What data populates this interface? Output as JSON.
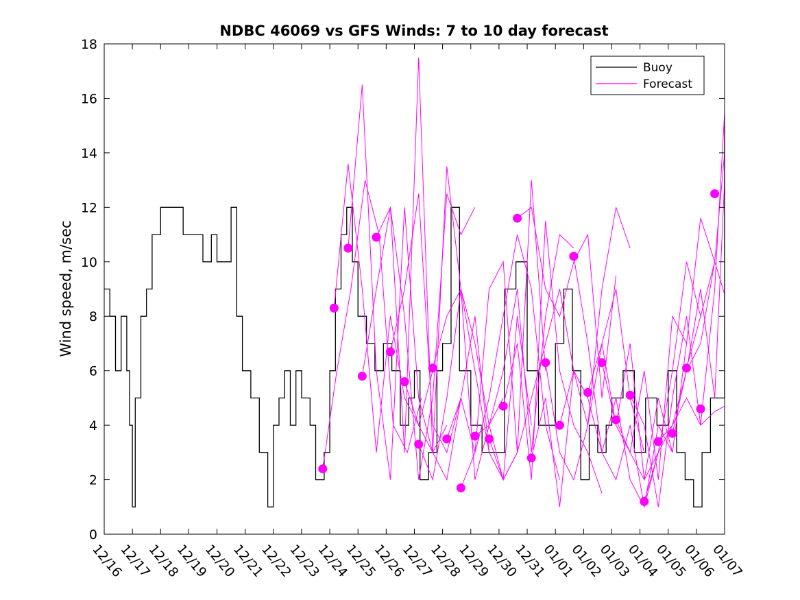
{
  "chart_data": {
    "type": "line",
    "title": "NDBC 46069 vs GFS Winds: 7 to 10 day forecast",
    "xlabel": "",
    "ylabel": "Wind speed, m/sec",
    "ylim": [
      0,
      18
    ],
    "xlim": [
      0,
      22
    ],
    "yticks": [
      0,
      2,
      4,
      6,
      8,
      10,
      12,
      14,
      16,
      18
    ],
    "x_ticks": [
      0,
      1,
      2,
      3,
      4,
      5,
      6,
      7,
      8,
      9,
      10,
      11,
      12,
      13,
      14,
      15,
      16,
      17,
      18,
      19,
      20,
      21,
      22
    ],
    "x_tick_labels": [
      "12/16",
      "12/17",
      "12/18",
      "12/19",
      "12/20",
      "12/21",
      "12/22",
      "12/23",
      "12/24",
      "12/25",
      "12/26",
      "12/27",
      "12/28",
      "12/29",
      "12/30",
      "12/31",
      "01/01",
      "01/02",
      "01/03",
      "01/04",
      "01/05",
      "01/06",
      "01/07"
    ],
    "x_units": "days since 12/16",
    "legend": {
      "position": "top-right",
      "entries": [
        "Buoy",
        "Forecast"
      ]
    },
    "colors": {
      "buoy": "#000000",
      "forecast": "#ff00ff"
    },
    "series": [
      {
        "name": "Buoy",
        "x": [
          0,
          0.2,
          0.4,
          0.6,
          0.8,
          0.9,
          1.0,
          1.1,
          1.3,
          1.5,
          1.7,
          2.0,
          2.3,
          2.6,
          2.8,
          3.0,
          3.2,
          3.5,
          3.8,
          4.0,
          4.2,
          4.5,
          4.7,
          4.9,
          5.2,
          5.5,
          5.8,
          6.0,
          6.2,
          6.4,
          6.6,
          6.8,
          7.0,
          7.3,
          7.5,
          7.8,
          8.0,
          8.2,
          8.4,
          8.6,
          8.8,
          9.0,
          9.3,
          9.6,
          9.9,
          10.2,
          10.5,
          10.8,
          11.0,
          11.2,
          11.5,
          11.8,
          12.0,
          12.3,
          12.6,
          13.0,
          13.4,
          13.8,
          14.2,
          14.6,
          15.0,
          15.4,
          15.8,
          16.0,
          16.3,
          16.6,
          16.9,
          17.2,
          17.5,
          17.8,
          18.0,
          18.4,
          18.8,
          19.2,
          19.6,
          20.0,
          20.3,
          20.6,
          20.9,
          21.2,
          21.5,
          22.0
        ],
        "values": [
          9,
          8,
          6,
          8,
          6,
          4,
          1,
          5,
          8,
          9,
          11,
          12,
          12,
          12,
          11,
          11,
          11,
          10,
          11,
          10,
          10,
          12,
          8,
          6,
          5,
          3,
          1,
          4,
          5,
          6,
          4,
          6,
          5,
          4,
          2,
          3,
          6,
          9,
          11,
          12,
          10,
          8,
          7,
          6,
          7,
          6,
          4,
          5,
          6,
          2,
          3,
          6,
          7,
          12,
          6,
          4,
          3,
          3,
          9,
          10,
          6,
          4,
          4,
          7,
          9,
          6,
          2,
          4,
          3,
          4,
          5,
          6,
          3,
          5,
          4,
          6,
          3,
          2,
          1,
          3,
          5,
          15
        ]
      },
      {
        "name": "Forecast",
        "markers": {
          "x": [
            7.75,
            8.15,
            8.65,
            9.15,
            9.65,
            10.15,
            10.65,
            11.15,
            11.65,
            12.15,
            12.65,
            13.15,
            13.65,
            14.15,
            14.65,
            15.15,
            15.65,
            16.15,
            16.65,
            17.15,
            17.65,
            18.15,
            18.65,
            19.15,
            19.65,
            20.15,
            20.65,
            21.15,
            21.65
          ],
          "values": [
            2.4,
            8.3,
            10.5,
            5.8,
            10.9,
            6.7,
            5.6,
            3.3,
            6.1,
            3.5,
            1.7,
            3.6,
            3.5,
            4.7,
            11.6,
            2.8,
            6.3,
            4.0,
            10.2,
            5.2,
            6.3,
            4.2,
            5.1,
            1.2,
            3.4,
            3.7,
            6.1,
            4.6,
            12.5
          ]
        },
        "runs": [
          {
            "x": [
              7.75,
              8.25,
              8.75,
              9.25,
              9.75,
              10.25,
              10.75,
              11.25
            ],
            "values": [
              2.4,
              6,
              9,
              13,
              11,
              4,
              3,
              5
            ]
          },
          {
            "x": [
              8.15,
              8.65,
              9.15,
              9.65,
              10.15,
              10.65,
              11.15,
              11.65
            ],
            "values": [
              8.3,
              13.6,
              9,
              3,
              8,
              5,
              4,
              6
            ]
          },
          {
            "x": [
              8.65,
              9.15,
              9.65,
              10.15,
              10.65,
              11.15,
              11.65,
              12.15
            ],
            "values": [
              10.5,
              16.5,
              6,
              2,
              12,
              5,
              3,
              4
            ]
          },
          {
            "x": [
              9.15,
              9.65,
              10.15,
              10.65,
              11.15,
              11.65,
              12.15,
              12.65
            ],
            "values": [
              5.8,
              9,
              12,
              3,
              17.5,
              3,
              2,
              5
            ]
          },
          {
            "x": [
              9.65,
              10.15,
              10.65,
              11.15,
              11.65,
              12.15,
              12.65,
              13.15
            ],
            "values": [
              10.9,
              12,
              8,
              2,
              5,
              12.5,
              11,
              12
            ]
          },
          {
            "x": [
              10.15,
              10.65,
              11.15,
              11.65,
              12.15,
              12.65,
              13.15,
              13.65
            ],
            "values": [
              6.7,
              9,
              12.5,
              4,
              3,
              5,
              8,
              3
            ]
          },
          {
            "x": [
              10.65,
              11.15,
              11.65,
              12.15,
              12.65,
              13.15,
              13.65,
              14.15
            ],
            "values": [
              5.6,
              4,
              3,
              13.5,
              9,
              2,
              4,
              5
            ]
          },
          {
            "x": [
              11.15,
              11.65,
              12.15,
              12.65,
              13.15,
              13.65,
              14.15,
              14.65
            ],
            "values": [
              3.3,
              2,
              5,
              9,
              7,
              4,
              2,
              3
            ]
          },
          {
            "x": [
              11.65,
              12.15,
              12.65,
              13.15,
              13.65,
              14.15,
              14.65,
              15.15
            ],
            "values": [
              6.1,
              8,
              9,
              6,
              3,
              2,
              8,
              4
            ]
          },
          {
            "x": [
              12.15,
              12.65,
              13.15,
              13.65,
              14.15,
              14.65,
              15.15,
              15.65
            ],
            "values": [
              3.5,
              5,
              3,
              9,
              10,
              3,
              13,
              6
            ]
          },
          {
            "x": [
              12.65,
              13.15,
              13.65,
              14.15,
              14.65,
              15.15,
              15.65,
              16.15
            ],
            "values": [
              1.7,
              3,
              5,
              8,
              11,
              9,
              4,
              2
            ]
          },
          {
            "x": [
              13.15,
              13.65,
              14.15,
              14.65,
              15.15,
              15.65,
              16.15,
              16.65
            ],
            "values": [
              3.6,
              4,
              6,
              9,
              3,
              8,
              11,
              10.5
            ]
          },
          {
            "x": [
              13.65,
              14.15,
              14.65,
              15.15,
              15.65,
              16.15,
              16.65,
              17.15
            ],
            "values": [
              3.5,
              2,
              3,
              5,
              7,
              9,
              6,
              5
            ]
          },
          {
            "x": [
              14.15,
              14.65,
              15.15,
              15.65,
              16.15,
              16.65,
              17.15,
              17.65
            ],
            "values": [
              4.7,
              7,
              2,
              11.5,
              6,
              4,
              3,
              1.5
            ]
          },
          {
            "x": [
              14.65,
              15.15,
              15.65,
              16.15,
              16.65,
              17.15,
              17.65,
              18.15
            ],
            "values": [
              11.6,
              12,
              9,
              8,
              10,
              11,
              5,
              9.5
            ]
          },
          {
            "x": [
              15.15,
              15.65,
              16.15,
              16.65,
              17.15,
              17.65,
              18.15,
              18.65
            ],
            "values": [
              2.8,
              5,
              1,
              6,
              4,
              9,
              12,
              10.5
            ]
          },
          {
            "x": [
              15.65,
              16.15,
              16.65,
              17.15,
              17.65,
              18.15,
              18.65,
              19.15
            ],
            "values": [
              6.3,
              3,
              2,
              4,
              7,
              9,
              5,
              3
            ]
          },
          {
            "x": [
              16.15,
              16.65,
              17.15,
              17.65,
              18.15,
              18.65,
              19.15,
              19.65
            ],
            "values": [
              4.0,
              6,
              5,
              3,
              2,
              4,
              1,
              3
            ]
          },
          {
            "x": [
              16.65,
              17.15,
              17.65,
              18.15,
              18.65,
              19.15,
              19.65,
              20.15
            ],
            "values": [
              10.2,
              7,
              3,
              5,
              2,
              1,
              4,
              3
            ]
          },
          {
            "x": [
              17.15,
              17.65,
              18.15,
              18.65,
              19.15,
              19.65,
              20.15,
              20.65
            ],
            "values": [
              5.2,
              7,
              4,
              3,
              6,
              2,
              8,
              7
            ]
          },
          {
            "x": [
              17.65,
              18.15,
              18.65,
              19.15,
              19.65,
              20.15,
              20.65,
              21.15
            ],
            "values": [
              6.3,
              4,
              7,
              2,
              3,
              6,
              10,
              8
            ]
          },
          {
            "x": [
              18.15,
              18.65,
              19.15,
              19.65,
              20.15,
              20.65,
              21.15,
              21.65
            ],
            "values": [
              4.2,
              3,
              2,
              5,
              3,
              7,
              11.6,
              10
            ]
          },
          {
            "x": [
              18.65,
              19.15,
              19.65,
              20.15,
              20.65,
              21.15,
              21.65,
              22.0
            ],
            "values": [
              5.1,
              4,
              1,
              5,
              8,
              4,
              9,
              15.5
            ]
          },
          {
            "x": [
              19.15,
              19.65,
              20.15,
              20.65,
              21.15,
              21.65,
              22.0
            ],
            "values": [
              1.2,
              3,
              4,
              5,
              4,
              4.5,
              4.7
            ]
          },
          {
            "x": [
              19.65,
              20.15,
              20.65,
              21.15,
              21.65,
              22.0
            ],
            "values": [
              3.4,
              4,
              6,
              7,
              10,
              14
            ]
          },
          {
            "x": [
              20.15,
              20.65,
              21.15,
              21.65,
              22.0
            ],
            "values": [
              3.7,
              6,
              9,
              5,
              13
            ]
          },
          {
            "x": [
              20.65,
              21.15,
              21.65,
              22.0
            ],
            "values": [
              6.1,
              8,
              10,
              8.8
            ]
          }
        ]
      }
    ]
  }
}
